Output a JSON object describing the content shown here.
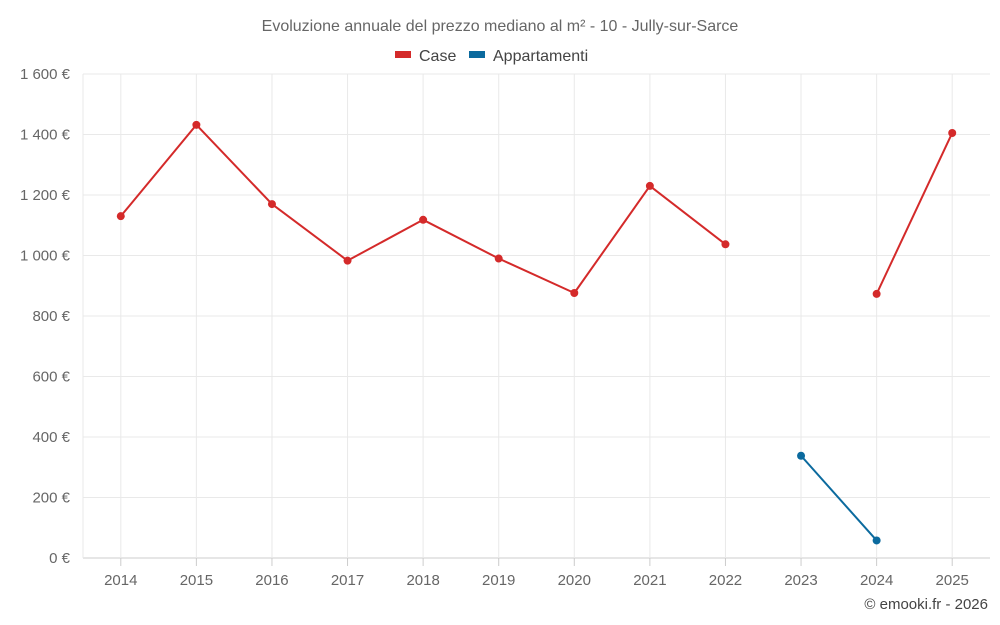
{
  "chart_data": {
    "type": "line",
    "title": "Evoluzione annuale del prezzo mediano al m² - 10 - Jully-sur-Sarce",
    "x": [
      "2014",
      "2015",
      "2016",
      "2017",
      "2018",
      "2019",
      "2020",
      "2021",
      "2022",
      "2023",
      "2024",
      "2025"
    ],
    "y_ticks": [
      "0 €",
      "200 €",
      "400 €",
      "600 €",
      "800 €",
      "1 000 €",
      "1 200 €",
      "1 400 €",
      "1 600 €"
    ],
    "y_tick_values": [
      0,
      200,
      400,
      600,
      800,
      1000,
      1200,
      1400,
      1600
    ],
    "ylim": [
      0,
      1600
    ],
    "grid": true,
    "legend_position": "top-center",
    "series": [
      {
        "name": "Case",
        "color": "#d42a2a",
        "values": [
          1130,
          1432,
          1170,
          983,
          1118,
          990,
          876,
          1230,
          1037,
          null,
          873,
          1405
        ]
      },
      {
        "name": "Appartamenti",
        "color": "#0b6a9e",
        "values": [
          null,
          null,
          null,
          null,
          null,
          null,
          null,
          null,
          null,
          338,
          58,
          null
        ]
      }
    ],
    "credit": "© emooki.fr - 2026"
  }
}
